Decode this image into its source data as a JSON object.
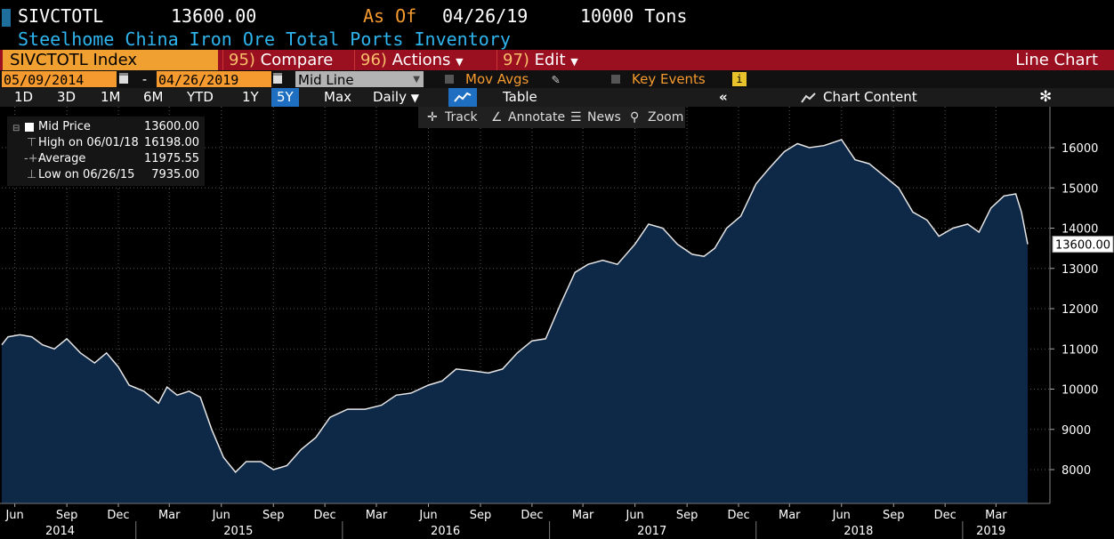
{
  "header": {
    "ticker": "SIVCTOTL",
    "last_value": "13600.00",
    "as_of_label": "As Of",
    "as_of_date": "04/26/19",
    "units": "10000 Tons",
    "title": "Steelhome China Iron Ore Total Ports Inventory"
  },
  "function_bar": {
    "security": "SIVCTOTL Index",
    "compare_num": "95)",
    "compare_label": "Compare",
    "actions_num": "96)",
    "actions_label": "Actions",
    "edit_num": "97)",
    "edit_label": "Edit",
    "view_label": "Line Chart"
  },
  "date_bar": {
    "start_date": "05/09/2014",
    "separator": "-",
    "end_date": "04/26/2019",
    "price_type": "Mid Line",
    "mov_avgs": "Mov Avgs",
    "key_events": "Key Events"
  },
  "period_bar": {
    "periods": [
      "1D",
      "3D",
      "1M",
      "6M",
      "YTD",
      "1Y",
      "5Y",
      "Max"
    ],
    "selected": "5Y",
    "frequency": "Daily",
    "table_label": "Table",
    "chart_content_label": "Chart Content"
  },
  "toolbar": {
    "track": "Track",
    "annotate": "Annotate",
    "news": "News",
    "zoom": "Zoom"
  },
  "legend": {
    "mid_price_label": "Mid Price",
    "mid_price_value": "13600.00",
    "high_label": "High on 06/01/18",
    "high_value": "16198.00",
    "average_label": "Average",
    "average_value": "11975.55",
    "low_label": "Low on 06/26/15",
    "low_value": "7935.00"
  },
  "colors": {
    "area_fill": "#0e2847",
    "line": "#e6e6e6",
    "accent_orange": "#f59a2e",
    "header_blue": "#2fb5ee",
    "function_bar": "#9a1020"
  },
  "chart_data": {
    "type": "area",
    "title": "Steelhome China Iron Ore Total Ports Inventory",
    "ylabel": "",
    "ylim": [
      7200,
      17000
    ],
    "y_ticks": [
      8000,
      9000,
      10000,
      11000,
      12000,
      13000,
      14000,
      15000,
      16000
    ],
    "last_value_label": "13600.00",
    "x_month_ticks": [
      "Jun",
      "Sep",
      "Dec",
      "Mar",
      "Jun",
      "Sep",
      "Dec",
      "Mar",
      "Jun",
      "Sep",
      "Dec",
      "Mar",
      "Jun",
      "Sep",
      "Dec",
      "Mar",
      "Jun",
      "Sep",
      "Dec",
      "Mar"
    ],
    "x_month_tick_dates": [
      "2014-06-01",
      "2014-09-01",
      "2014-12-01",
      "2015-03-01",
      "2015-06-01",
      "2015-09-01",
      "2015-12-01",
      "2016-03-01",
      "2016-06-01",
      "2016-09-01",
      "2016-12-01",
      "2017-03-01",
      "2017-06-01",
      "2017-09-01",
      "2017-12-01",
      "2018-03-01",
      "2018-06-01",
      "2018-09-01",
      "2018-12-01",
      "2019-03-01"
    ],
    "x_year_labels": [
      "2014",
      "2015",
      "2016",
      "2017",
      "2018",
      "2019"
    ],
    "x_year_label_dates": [
      "2014-08-20",
      "2015-07-01",
      "2016-07-01",
      "2017-07-01",
      "2018-07-01",
      "2019-02-20"
    ],
    "x_year_divider_dates": [
      "2015-01-01",
      "2016-01-01",
      "2017-01-01",
      "2018-01-01",
      "2019-01-01"
    ],
    "series": [
      {
        "values": [
          [
            "2014-05-09",
            11100
          ],
          [
            "2014-05-20",
            11300
          ],
          [
            "2014-06-10",
            11350
          ],
          [
            "2014-07-01",
            11300
          ],
          [
            "2014-07-20",
            11100
          ],
          [
            "2014-08-10",
            11000
          ],
          [
            "2014-09-01",
            11250
          ],
          [
            "2014-09-25",
            10900
          ],
          [
            "2014-10-20",
            10650
          ],
          [
            "2014-11-10",
            10900
          ],
          [
            "2014-12-01",
            10550
          ],
          [
            "2014-12-20",
            10100
          ],
          [
            "2015-01-15",
            9950
          ],
          [
            "2015-02-10",
            9650
          ],
          [
            "2015-02-25",
            10050
          ],
          [
            "2015-03-15",
            9850
          ],
          [
            "2015-04-05",
            9950
          ],
          [
            "2015-04-25",
            9800
          ],
          [
            "2015-05-15",
            9000
          ],
          [
            "2015-06-05",
            8300
          ],
          [
            "2015-06-26",
            7935
          ],
          [
            "2015-07-15",
            8200
          ],
          [
            "2015-08-10",
            8200
          ],
          [
            "2015-09-01",
            8000
          ],
          [
            "2015-09-25",
            8100
          ],
          [
            "2015-10-20",
            8500
          ],
          [
            "2015-11-15",
            8800
          ],
          [
            "2015-12-10",
            9300
          ],
          [
            "2016-01-10",
            9500
          ],
          [
            "2016-02-10",
            9500
          ],
          [
            "2016-03-10",
            9600
          ],
          [
            "2016-04-05",
            9850
          ],
          [
            "2016-05-01",
            9900
          ],
          [
            "2016-06-01",
            10100
          ],
          [
            "2016-06-25",
            10200
          ],
          [
            "2016-07-20",
            10500
          ],
          [
            "2016-08-20",
            10450
          ],
          [
            "2016-09-15",
            10400
          ],
          [
            "2016-10-10",
            10500
          ],
          [
            "2016-11-05",
            10900
          ],
          [
            "2016-12-01",
            11200
          ],
          [
            "2016-12-25",
            11250
          ],
          [
            "2017-01-20",
            12100
          ],
          [
            "2017-02-15",
            12900
          ],
          [
            "2017-03-10",
            13100
          ],
          [
            "2017-04-05",
            13200
          ],
          [
            "2017-05-01",
            13100
          ],
          [
            "2017-06-01",
            13600
          ],
          [
            "2017-06-25",
            14100
          ],
          [
            "2017-07-20",
            14000
          ],
          [
            "2017-08-15",
            13600
          ],
          [
            "2017-09-10",
            13350
          ],
          [
            "2017-10-01",
            13300
          ],
          [
            "2017-10-20",
            13500
          ],
          [
            "2017-11-10",
            14000
          ],
          [
            "2017-12-05",
            14300
          ],
          [
            "2018-01-01",
            15100
          ],
          [
            "2018-01-25",
            15500
          ],
          [
            "2018-02-20",
            15900
          ],
          [
            "2018-03-15",
            16100
          ],
          [
            "2018-04-05",
            16000
          ],
          [
            "2018-05-01",
            16050
          ],
          [
            "2018-06-01",
            16198
          ],
          [
            "2018-06-25",
            15700
          ],
          [
            "2018-07-20",
            15600
          ],
          [
            "2018-08-15",
            15300
          ],
          [
            "2018-09-10",
            15000
          ],
          [
            "2018-10-05",
            14400
          ],
          [
            "2018-10-30",
            14200
          ],
          [
            "2018-11-20",
            13800
          ],
          [
            "2018-12-15",
            14000
          ],
          [
            "2019-01-10",
            14100
          ],
          [
            "2019-01-30",
            13900
          ],
          [
            "2019-02-20",
            14500
          ],
          [
            "2019-03-15",
            14800
          ],
          [
            "2019-04-05",
            14850
          ],
          [
            "2019-04-15",
            14400
          ],
          [
            "2019-04-26",
            13600
          ]
        ]
      }
    ]
  }
}
